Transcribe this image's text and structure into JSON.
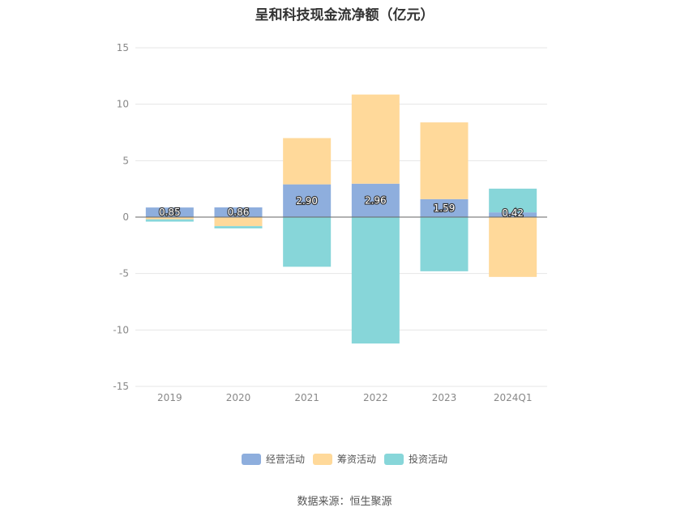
{
  "title": "呈和科技现金流净额（亿元）",
  "source": "数据来源：恒生聚源",
  "chart_data": {
    "type": "bar",
    "stacked": true,
    "categories": [
      "2019",
      "2020",
      "2021",
      "2022",
      "2023",
      "2024Q1"
    ],
    "ylim": [
      -15,
      15
    ],
    "yticks": [
      15,
      10,
      5,
      0,
      -5,
      -10,
      -15
    ],
    "grid": true,
    "legend_position": "bottom",
    "series": [
      {
        "name": "经营活动",
        "color": "#8eaedd",
        "values": [
          0.85,
          0.86,
          2.9,
          2.96,
          1.59,
          0.42
        ],
        "labels": [
          "0.85",
          "0.86",
          "2.90",
          "2.96",
          "1.59",
          "0.42"
        ]
      },
      {
        "name": "筹资活动",
        "color": "#ffd99a",
        "values": [
          -0.2,
          -0.8,
          4.1,
          7.9,
          6.8,
          -5.3
        ]
      },
      {
        "name": "投资活动",
        "color": "#87d6d9",
        "values": [
          -0.2,
          -0.2,
          -4.4,
          -11.2,
          -4.8,
          2.1
        ]
      }
    ]
  }
}
